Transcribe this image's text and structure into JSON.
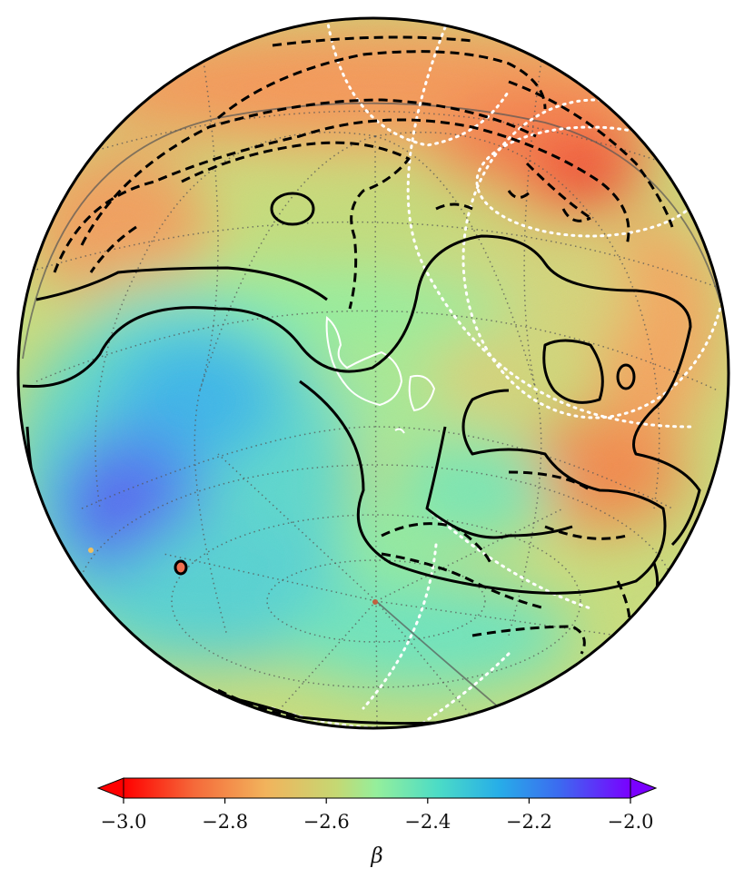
{
  "map": {
    "projection": "orthographic",
    "graticule_style": "dotted",
    "contour_colors": {
      "solid": "#000000",
      "dashed": "#000000",
      "white_dotted": "#ffffff",
      "white_solid": "#ffffff"
    }
  },
  "colorbar": {
    "label": "β",
    "min": -3.0,
    "max": -2.0,
    "extend": "both",
    "ticks": [
      {
        "value": -3.0,
        "label": "−3.0"
      },
      {
        "value": -2.8,
        "label": "−2.8"
      },
      {
        "value": -2.6,
        "label": "−2.6"
      },
      {
        "value": -2.4,
        "label": "−2.4"
      },
      {
        "value": -2.2,
        "label": "−2.2"
      },
      {
        "value": -2.0,
        "label": "−2.0"
      }
    ],
    "colormap": [
      "#ff0000",
      "#f7a545",
      "#c8d66e",
      "#93ef9a",
      "#3cd6c9",
      "#2ea0ea",
      "#4b52f0",
      "#7a00ff"
    ],
    "under_color": "#ff0000",
    "over_color": "#7a00ff"
  }
}
